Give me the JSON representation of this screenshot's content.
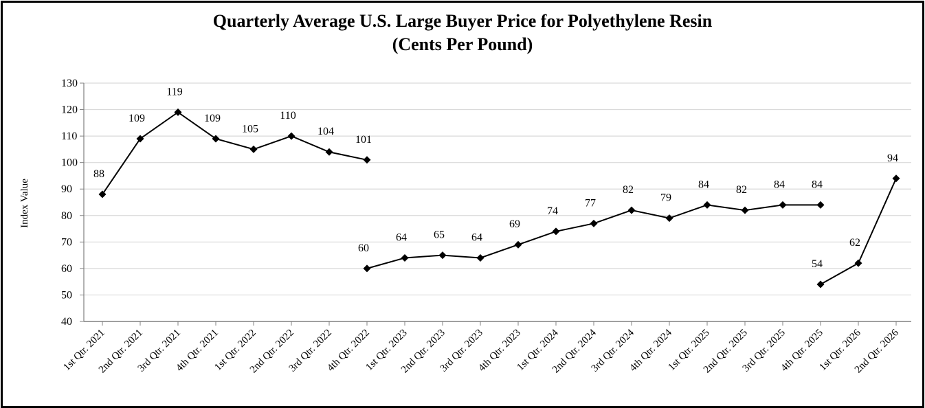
{
  "chart_data": {
    "type": "line",
    "title": "Quarterly Average U.S. Large Buyer Price for Polyethylene Resin",
    "subtitle": "(Cents Per Pound)",
    "xlabel": "",
    "ylabel": "Index Value",
    "ylim": [
      40,
      130
    ],
    "ytick_step": 10,
    "grid": true,
    "categories": [
      "1st Qtr. 2021",
      "2nd Qtr. 2021",
      "3rd Qtr. 2021",
      "4th Qtr. 2021",
      "1st Qtr. 2022",
      "2nd Qtr. 2022",
      "3rd Qtr. 2022",
      "4th Qtr. 2022",
      "1st Qtr. 2023",
      "2nd Qtr. 2023",
      "3rd Qtr. 2023",
      "4th Qtr. 2023",
      "1st Qtr. 2024",
      "2nd Qtr. 2024",
      "3rd Qtr. 2024",
      "4th Qtr. 2024",
      "1st Qtr. 2025",
      "2nd Qtr. 2025",
      "3rd Qtr. 2025",
      "4th Qtr. 2025",
      "1st Qtr. 2026",
      "2nd Qtr. 2026"
    ],
    "segments": [
      {
        "points": [
          {
            "x": "1st Qtr. 2021",
            "y": 88
          },
          {
            "x": "2nd Qtr. 2021",
            "y": 109
          },
          {
            "x": "3rd Qtr. 2021",
            "y": 119
          },
          {
            "x": "4th Qtr. 2021",
            "y": 109
          },
          {
            "x": "1st Qtr. 2022",
            "y": 105
          },
          {
            "x": "2nd Qtr. 2022",
            "y": 110
          },
          {
            "x": "3rd Qtr. 2022",
            "y": 104
          },
          {
            "x": "4th Qtr. 2022",
            "y": 101
          }
        ]
      },
      {
        "points": [
          {
            "x": "4th Qtr. 2022",
            "y": 60
          },
          {
            "x": "1st Qtr. 2023",
            "y": 64
          },
          {
            "x": "2nd Qtr. 2023",
            "y": 65
          },
          {
            "x": "3rd Qtr. 2023",
            "y": 64
          },
          {
            "x": "4th Qtr. 2023",
            "y": 69
          },
          {
            "x": "1st Qtr. 2024",
            "y": 74
          },
          {
            "x": "2nd Qtr. 2024",
            "y": 77
          },
          {
            "x": "3rd Qtr. 2024",
            "y": 82
          },
          {
            "x": "4th Qtr. 2024",
            "y": 79
          },
          {
            "x": "1st Qtr. 2025",
            "y": 84
          },
          {
            "x": "2nd Qtr. 2025",
            "y": 82
          },
          {
            "x": "3rd Qtr. 2025",
            "y": 84
          },
          {
            "x": "4th Qtr. 2025",
            "y": 84
          }
        ]
      },
      {
        "points": [
          {
            "x": "4th Qtr. 2025",
            "y": 54
          },
          {
            "x": "1st Qtr. 2026",
            "y": 62
          },
          {
            "x": "2nd Qtr. 2026",
            "y": 94
          }
        ]
      }
    ],
    "colors": {
      "line": "#000000",
      "marker": "#000000",
      "grid": "#d9d9d9",
      "axis": "#808080"
    },
    "marker": "diamond"
  }
}
